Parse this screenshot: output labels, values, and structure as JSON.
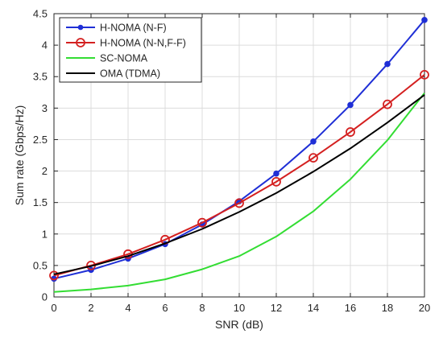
{
  "chart_data": {
    "type": "line",
    "title": "",
    "xlabel": "SNR (dB)",
    "ylabel": "Sum rate (Gbps/Hz)",
    "xlim": [
      0,
      20
    ],
    "ylim": [
      0,
      4.5
    ],
    "xticks": [
      0,
      2,
      4,
      6,
      8,
      10,
      12,
      14,
      16,
      18,
      20
    ],
    "yticks": [
      0,
      0.5,
      1,
      1.5,
      2,
      2.5,
      3,
      3.5,
      4,
      4.5
    ],
    "grid": true,
    "legend_position": "top-left",
    "series": [
      {
        "name": "H-NOMA (N-F)",
        "color": "#1f2fd6",
        "marker": "filled-circle",
        "x": [
          0,
          2,
          4,
          6,
          8,
          10,
          12,
          14,
          16,
          18,
          20
        ],
        "y": [
          0.29,
          0.43,
          0.61,
          0.84,
          1.15,
          1.52,
          1.96,
          2.47,
          3.05,
          3.7,
          4.4
        ]
      },
      {
        "name": "H-NOMA (N-N,F-F)",
        "color": "#d42020",
        "marker": "open-circle",
        "x": [
          0,
          2,
          4,
          6,
          8,
          10,
          12,
          14,
          16,
          18,
          20
        ],
        "y": [
          0.34,
          0.5,
          0.68,
          0.91,
          1.18,
          1.49,
          1.83,
          2.21,
          2.62,
          3.06,
          3.53
        ]
      },
      {
        "name": "SC-NOMA",
        "color": "#33dd33",
        "marker": "none",
        "x": [
          0,
          2,
          4,
          6,
          8,
          10,
          12,
          14,
          16,
          18,
          20
        ],
        "y": [
          0.08,
          0.12,
          0.18,
          0.28,
          0.44,
          0.65,
          0.96,
          1.36,
          1.87,
          2.49,
          3.24
        ]
      },
      {
        "name": "OMA (TDMA)",
        "color": "#000000",
        "marker": "none",
        "x": [
          0,
          2,
          4,
          6,
          8,
          10,
          12,
          14,
          16,
          18,
          20
        ],
        "y": [
          0.36,
          0.49,
          0.65,
          0.85,
          1.08,
          1.35,
          1.65,
          1.99,
          2.36,
          2.77,
          3.21
        ]
      }
    ]
  }
}
